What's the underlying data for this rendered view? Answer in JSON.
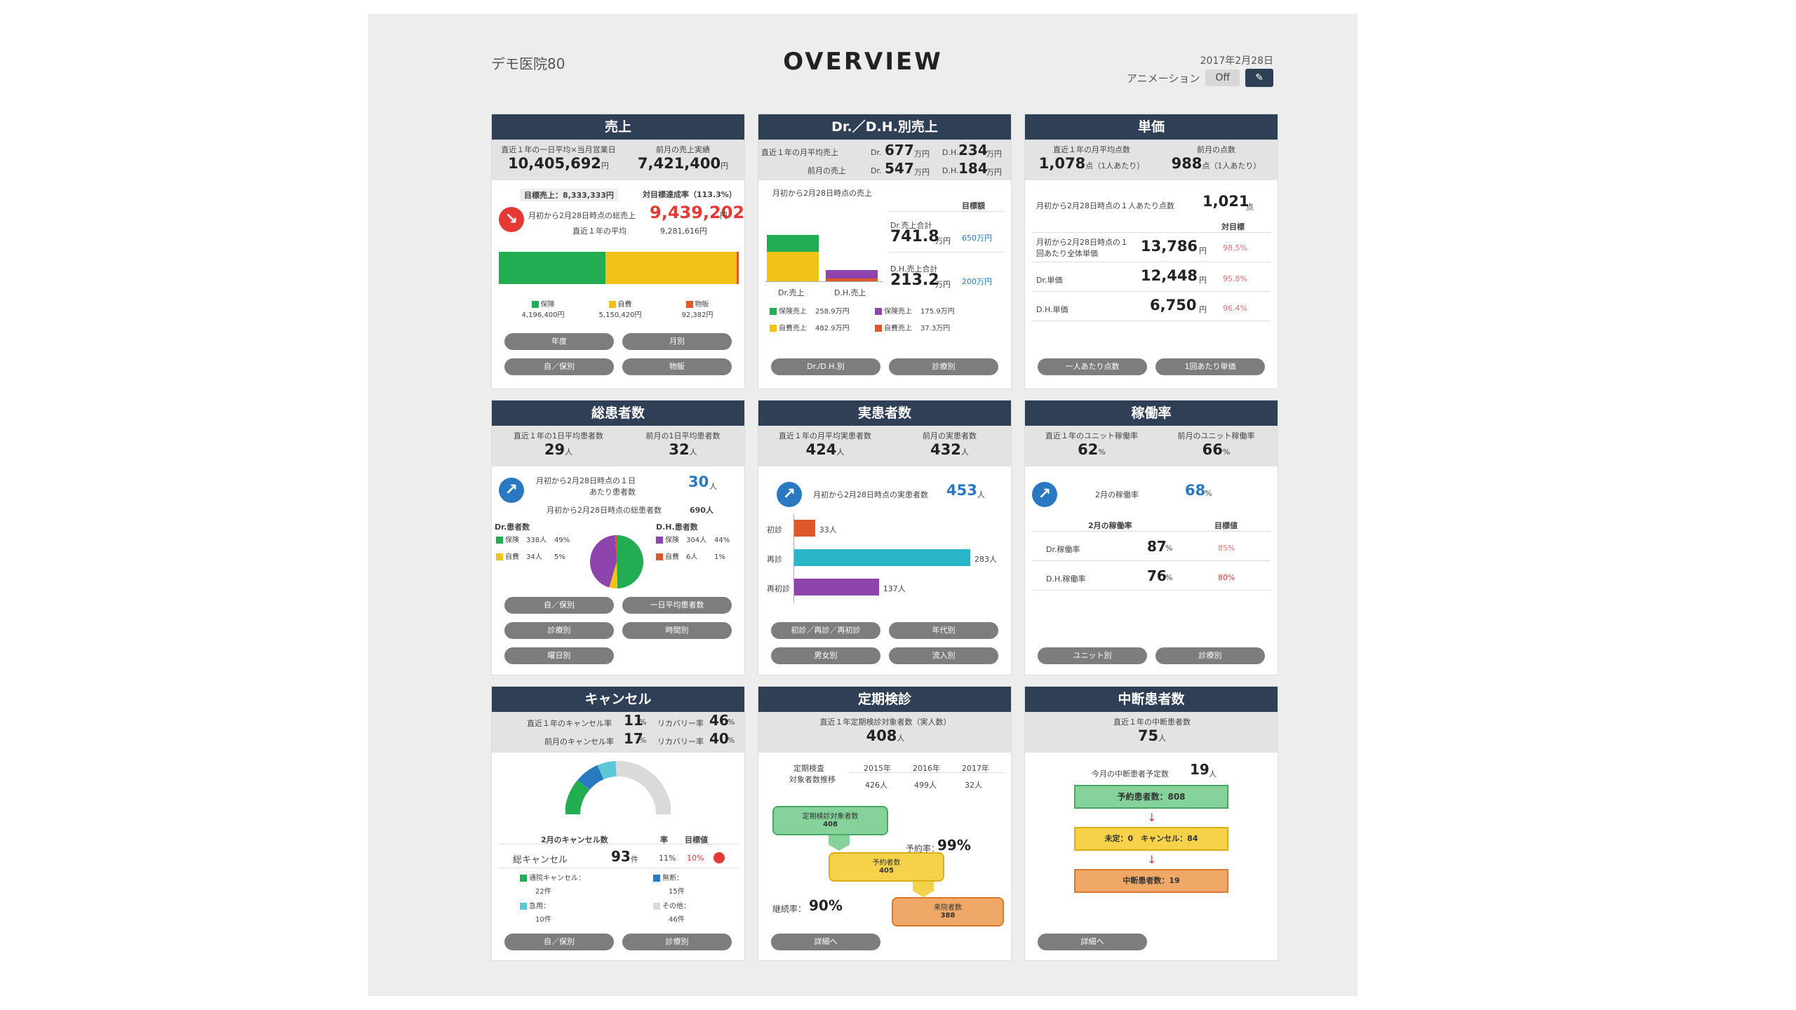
{
  "header": {
    "clinic": "デモ医院80",
    "title": "OVERVIEW",
    "date": "2017年2月28日",
    "animation_label": "アニメーション",
    "animation_state": "Off",
    "pin_icon": "pin-icon"
  },
  "sales": {
    "title": "売上",
    "s1_label": "直近１年の一日平均×当月営業日",
    "s1_value": "10,405,692",
    "s2_label": "前月の売上実績",
    "s2_value": "7,421,400",
    "unit": "円",
    "target": "目標売上：8,333,333円",
    "target_rate": "対目標達成率（113.3%）",
    "cur_label": "月初から2月28日時点の総売上",
    "cur_value": "9,439,202",
    "avg_label": "直近１年の平均",
    "avg_value": "9,281,616円",
    "legend": [
      {
        "name": "保険",
        "value": "4,196,400円",
        "color": "#22ad52"
      },
      {
        "name": "自費",
        "value": "5,150,420円",
        "color": "#f0c21a"
      },
      {
        "name": "物販",
        "value": "92,382円",
        "color": "#e0582a"
      }
    ],
    "buttons": [
      "年度",
      "月別",
      "自／保別",
      "物販"
    ]
  },
  "drsales": {
    "title": "Dr.／D.H.別売上",
    "r1a": "直近１年の月平均売上",
    "r1b_dr": "Dr.",
    "r1b_v": "677",
    "r1c_dh": "D.H.",
    "r1c_v": "234",
    "r2a": "前月の売上",
    "r2b_v": "547",
    "r2c_v": "184",
    "unit": "万円",
    "period": "月初から2月28日時点の売上",
    "target_hdr": "目標額",
    "dr_label": "Dr.売上合計",
    "dr_value": "741.8",
    "dr_target": "650万円",
    "dh_label": "D.H.売上合計",
    "dh_value": "213.2",
    "dh_target": "200万円",
    "bar_dr": "Dr.売上",
    "bar_dh": "D.H.売上",
    "legend": [
      {
        "name": "保険売上",
        "value": "258.9万円",
        "color": "#22ad52"
      },
      {
        "name": "保険売上",
        "value": "175.9万円",
        "color": "#8e44ad"
      },
      {
        "name": "自費売上",
        "value": "482.9万円",
        "color": "#f0c21a"
      },
      {
        "name": "自費売上",
        "value": "37.3万円",
        "color": "#e0582a"
      }
    ],
    "buttons": [
      "Dr./D.H.別",
      "診療別"
    ]
  },
  "unitprice": {
    "title": "単価",
    "s1_label": "直近１年の月平均点数",
    "s1_value": "1,078",
    "s1_unit": "点（1人あたり）",
    "s2_label": "前月の点数",
    "s2_value": "988",
    "s2_unit": "点（1人あたり）",
    "per_label": "月初から2月28日時点の１人あたり点数",
    "per_value": "1,021",
    "per_unit": "点",
    "target_hdr": "対目標",
    "rows": [
      {
        "label": "月初から2月28日時点の１回あたり全体単価",
        "value": "13,786",
        "rate": "98.5%"
      },
      {
        "label": "Dr.単価",
        "value": "12,448",
        "rate": "95.8%"
      },
      {
        "label": "D.H.単価",
        "value": "6,750",
        "rate": "96.4%"
      }
    ],
    "yen": "円",
    "buttons": [
      "一人あたり点数",
      "1回あたり単価"
    ]
  },
  "patients": {
    "title": "総患者数",
    "s1_label": "直近１年の1日平均患者数",
    "s1_value": "29",
    "s2_label": "前月の1日平均患者数",
    "s2_value": "32",
    "unit": "人",
    "avg_label": "月初から2月28日時点の１日あたり患者数",
    "avg_value": "30",
    "total_label": "月初から2月28日時点の総患者数",
    "total_value": "690人",
    "dr_hdr": "Dr.患者数",
    "dh_hdr": "D.H.患者数",
    "dr_rows": [
      {
        "name": "保険",
        "n": "338人",
        "p": "49%",
        "color": "#22ad52"
      },
      {
        "name": "自費",
        "n": "34人",
        "p": "5%",
        "color": "#f0c21a"
      }
    ],
    "dh_rows": [
      {
        "name": "保険",
        "n": "304人",
        "p": "44%",
        "color": "#8e44ad"
      },
      {
        "name": "自費",
        "n": "6人",
        "p": "1%",
        "color": "#e0582a"
      }
    ],
    "buttons": [
      "自／保別",
      "一日平均患者数",
      "診療別",
      "時間別",
      "曜日別"
    ]
  },
  "real": {
    "title": "実患者数",
    "s1_label": "直近１年の月平均実患者数",
    "s1_value": "424",
    "s2_label": "前月の実患者数",
    "s2_value": "432",
    "unit": "人",
    "cur_label": "月初から2月28日時点の実患者数",
    "cur_value": "453",
    "bars": [
      {
        "label": "初診",
        "value": "33人",
        "color": "#e0582a",
        "w": 22
      },
      {
        "label": "再診",
        "value": "283人",
        "color": "#29b6c8",
        "w": 180
      },
      {
        "label": "再初診",
        "value": "137人",
        "color": "#8e44ad",
        "w": 87
      }
    ],
    "buttons": [
      "初診／再診／再初診",
      "年代別",
      "男女別",
      "流入別"
    ]
  },
  "operation": {
    "title": "稼働率",
    "s1_label": "直近１年のユニット稼働率",
    "s1_value": "62",
    "s2_label": "前月のユニット稼働率",
    "s2_value": "66",
    "unit": "%",
    "cur_label": "2月の稼働率",
    "cur_value": "68",
    "hdr1": "2月の稼働率",
    "hdr2": "目標値",
    "rows": [
      {
        "label": "Dr.稼働率",
        "value": "87",
        "target": "85%"
      },
      {
        "label": "D.H.稼働率",
        "value": "76",
        "target": "80%"
      }
    ],
    "buttons": [
      "ユニット別",
      "診療別"
    ]
  },
  "cancel": {
    "title": "キャンセル",
    "r1_label": "直近１年のキャンセル率",
    "r1_value": "11",
    "r1b": "リカバリー率",
    "r1b_value": "46",
    "r2_label": "前月のキャンセル率",
    "r2_value": "17",
    "r2b_value": "40",
    "unit": "%",
    "hdr1": "2月のキャンセル数",
    "hdr2": "率",
    "hdr3": "目標値",
    "total_label": "総キャンセル",
    "total_value": "93",
    "total_unit": "件",
    "rate": "11%",
    "target": "10%",
    "items": [
      {
        "name": "通院キャンセル：",
        "n": "22件",
        "color": "#22ad52"
      },
      {
        "name": "無断：",
        "n": "15件",
        "color": "#2979c2"
      },
      {
        "name": "急用：",
        "n": "10件",
        "color": "#5cc8d6"
      },
      {
        "name": "その他：",
        "n": "46件",
        "color": "#dadada"
      }
    ],
    "buttons": [
      "自／保別",
      "診療別"
    ]
  },
  "checkup": {
    "title": "定期検診",
    "s_label": "直近１年定期検診対象者数（実人数）",
    "s_value": "408",
    "unit": "人",
    "tbl_hdr1": "定期検査",
    "tbl_hdr2": "対象者数推移",
    "years": [
      "2015年",
      "2016年",
      "2017年"
    ],
    "counts": [
      "426人",
      "499人",
      "32人"
    ],
    "flow": [
      {
        "label": "定期検診対象者数",
        "value": "408"
      },
      {
        "label": "予約者数",
        "value": "405"
      },
      {
        "label": "来院者数",
        "value": "388"
      }
    ],
    "reserve_rate_label": "予約率：",
    "reserve_rate": "99%",
    "visit_rate_label": "継続率：",
    "visit_rate": "90%",
    "button": "詳細へ"
  },
  "dropout": {
    "title": "中断患者数",
    "s_label": "直近１年の中断患者数",
    "s_value": "75",
    "unit": "人",
    "cur_label": "今月の中断患者予定数",
    "cur_value": "19",
    "box1": "予約患者数：808",
    "box2": "未定：0　キャンセル：84",
    "box3": "中断患者数：19",
    "button": "詳細へ"
  }
}
